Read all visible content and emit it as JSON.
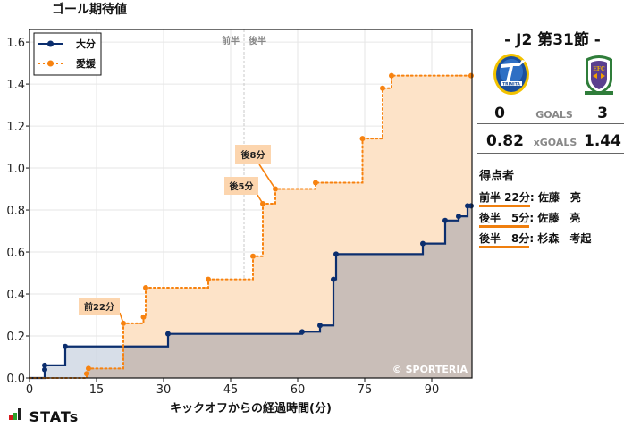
{
  "chart_data": {
    "type": "line",
    "step": true,
    "title": "ゴール期待値",
    "xlabel": "キックオフからの経過時間(分)",
    "ylabel": "",
    "xlim": [
      0,
      99
    ],
    "ylim": [
      0,
      1.66
    ],
    "xticks": [
      0,
      15,
      30,
      45,
      60,
      75,
      90
    ],
    "yticks": [
      0.0,
      0.2,
      0.4,
      0.6,
      0.8,
      1.0,
      1.2,
      1.4,
      1.6
    ],
    "xtick_labels": [
      "0",
      "15",
      "30",
      "45",
      "60",
      "75",
      "90"
    ],
    "ytick_labels": [
      "0.0",
      "0.2",
      "0.4",
      "0.6",
      "0.8",
      "1.0",
      "1.2",
      "1.4",
      "1.6"
    ],
    "grid": true,
    "legend_position": "upper left",
    "halftime_line": {
      "x": 48,
      "labels": [
        "前半",
        "後半"
      ]
    },
    "series": [
      {
        "name": "大分",
        "color": "#0b2e6e",
        "fill": "#c9d3e0",
        "style": "solid",
        "points": [
          [
            0,
            0
          ],
          [
            3.4,
            0.04
          ],
          [
            3.4,
            0.06
          ],
          [
            8,
            0.15
          ],
          [
            31,
            0.21
          ],
          [
            61,
            0.22
          ],
          [
            65,
            0.25
          ],
          [
            68,
            0.47
          ],
          [
            68.6,
            0.59
          ],
          [
            88,
            0.64
          ],
          [
            93,
            0.75
          ],
          [
            96,
            0.77
          ],
          [
            98,
            0.82
          ],
          [
            99,
            0.82
          ]
        ]
      },
      {
        "name": "愛媛",
        "color": "#f7820f",
        "fill": "#fde3c8",
        "style": "dotted",
        "points": [
          [
            0,
            0
          ],
          [
            12.8,
            0.02
          ],
          [
            13.2,
            0.045
          ],
          [
            21,
            0.26
          ],
          [
            25.5,
            0.29
          ],
          [
            26,
            0.43
          ],
          [
            40,
            0.47
          ],
          [
            50,
            0.58
          ],
          [
            52.2,
            0.83
          ],
          [
            55,
            0.9
          ],
          [
            64,
            0.93
          ],
          [
            74.5,
            1.14
          ],
          [
            79,
            1.38
          ],
          [
            81,
            1.44
          ],
          [
            99,
            1.44
          ]
        ]
      }
    ],
    "annotations": [
      {
        "text": "前22分",
        "x": 21,
        "y": 0.26
      },
      {
        "text": "後5分",
        "x": 52.2,
        "y": 0.83
      },
      {
        "text": "後8分",
        "x": 55,
        "y": 0.9
      }
    ],
    "watermark": "© SPORTERIA"
  },
  "match": {
    "round": "-  J2 第31節  -",
    "home": {
      "name": "大分",
      "goals": "0",
      "xgoals": "0.82",
      "logo_icon": "oita-trinita-crest-icon"
    },
    "away": {
      "name": "愛媛",
      "goals": "3",
      "xgoals": "1.44",
      "logo_icon": "ehime-fc-crest-icon"
    },
    "goals_label": "GOALS",
    "xgoals_label": "xGOALS"
  },
  "scorers": {
    "title": "得点者",
    "items": [
      {
        "time": "前半 22分",
        "name": ": 佐藤　亮"
      },
      {
        "time": "後半　5分",
        "name": ": 佐藤　亮"
      },
      {
        "time": "後半　8分",
        "name": ": 杉森　考起"
      }
    ]
  },
  "branding": {
    "logo_text": "STATs",
    "bar_colors": [
      "#d7191c",
      "#2ca02c",
      "#222222"
    ]
  }
}
